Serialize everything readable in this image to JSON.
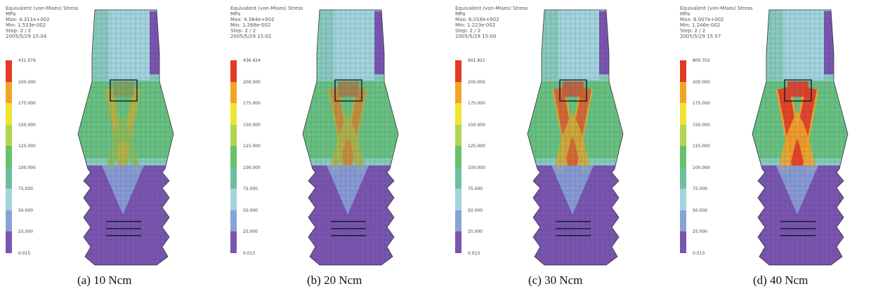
{
  "legend_colors": [
    "#7a55b0",
    "#8aa2d6",
    "#a3d4dd",
    "#6cbf9f",
    "#66c26c",
    "#b0d64e",
    "#f0e431",
    "#f2a42a",
    "#e23a28"
  ],
  "panels": [
    {
      "header": [
        "Equivalent (von-Mises) Stress",
        "MPa",
        "Max: 4.311e+002",
        "Min: 1.533e-002",
        "Step: 2 / 2",
        "2005/5/29 15:04"
      ],
      "ticks": [
        "431.079",
        "200.000",
        "175.000",
        "150.000",
        "125.000",
        "100.000",
        "75.000",
        "50.000",
        "25.000",
        "0.015"
      ],
      "caption": "(a) 10 Ncm",
      "level": 0.25
    },
    {
      "header": [
        "Equivalent (von-Mises) Stress",
        "MPa",
        "Max: 4.364e+002",
        "Min: 1.268e-002",
        "Step: 2 / 2",
        "2005/5/29 15:02"
      ],
      "ticks": [
        "436.424",
        "200.000",
        "175.000",
        "150.000",
        "125.000",
        "100.000",
        "75.000",
        "50.000",
        "25.000",
        "0.013"
      ],
      "caption": "(b) 20 Ncm",
      "level": 0.5
    },
    {
      "header": [
        "Equivalent (von-Mises) Stress",
        "MPa",
        "Max: 6.018e+002",
        "Min: 1.223e-002",
        "Step: 2 / 2",
        "2005/5/29 15:00"
      ],
      "ticks": [
        "601.821",
        "200.000",
        "175.000",
        "150.000",
        "125.000",
        "100.000",
        "75.000",
        "50.000",
        "25.000",
        "0.013"
      ],
      "caption": "(c) 30 Ncm",
      "level": 0.75
    },
    {
      "header": [
        "Equivalent (von-Mises) Stress",
        "MPa",
        "Max: 8.007e+002",
        "Min: 1.246e-002",
        "Step: 2 / 2",
        "2005/5/29 15:57"
      ],
      "ticks": [
        "800.702",
        "200.000",
        "175.000",
        "150.000",
        "125.000",
        "100.000",
        "75.000",
        "50.000",
        "25.000",
        "0.013"
      ],
      "caption": "(d) 40 Ncm",
      "level": 1.0
    }
  ]
}
